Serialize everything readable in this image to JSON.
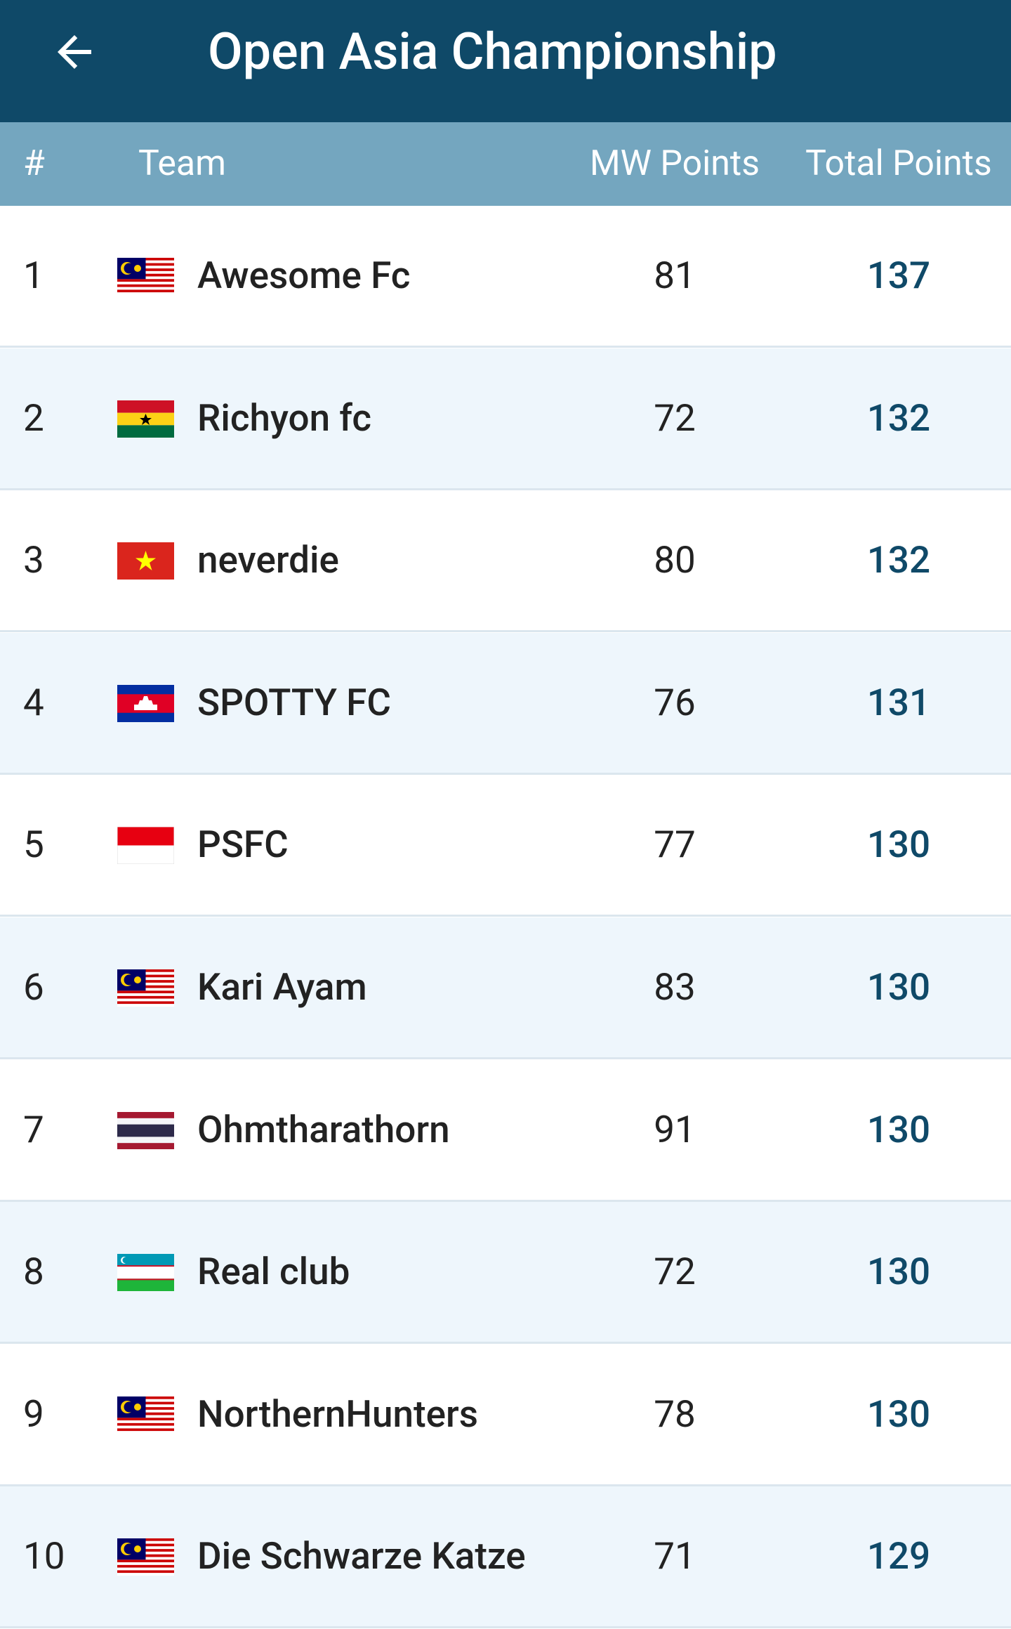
{
  "header": {
    "title": "Open Asia Championship"
  },
  "table": {
    "columns": [
      "#",
      "Team",
      "MW Points",
      "Total Points"
    ],
    "rows": [
      [
        1,
        "Awesome Fc",
        81,
        137
      ],
      [
        2,
        "Richyon fc",
        72,
        132
      ],
      [
        3,
        "neverdie",
        80,
        132
      ],
      [
        4,
        "SPOTTY FC",
        76,
        131
      ],
      [
        5,
        "PSFC",
        77,
        130
      ],
      [
        6,
        "Kari Ayam",
        83,
        130
      ],
      [
        7,
        "Ohmtharathorn",
        91,
        130
      ],
      [
        8,
        "Real club",
        72,
        130
      ],
      [
        9,
        "NorthernHunters",
        78,
        130
      ],
      [
        10,
        "Die Schwarze Katze",
        71,
        129
      ]
    ]
  }
}
